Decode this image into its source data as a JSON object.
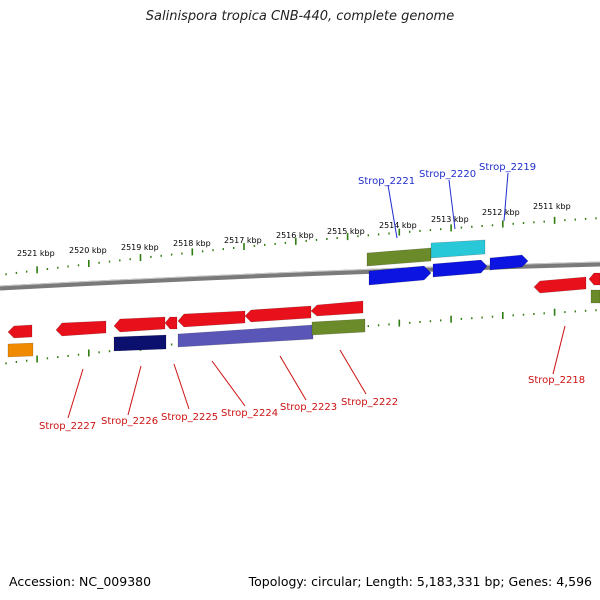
{
  "title": "Salinispora tropica CNB-440, complete genome",
  "footer": {
    "accession": "Accession: NC_009380",
    "summary": "Topology: circular; Length: 5,183,331 bp; Genes: 4,596"
  },
  "colors": {
    "backbone": "#7a7a7a",
    "tick": "#2e7d10",
    "gene_red": "#e8101a",
    "gene_blue": "#0b14e0",
    "gene_navy": "#0b0f6e",
    "gene_olive": "#6b8a2a",
    "gene_cyan": "#29c8d8",
    "gene_orange": "#f08a00",
    "gene_slate": "#5a56b8",
    "label_red": "#cc1111",
    "label_blue": "#1f2dcc"
  },
  "scale_labels": [
    "2521 kbp",
    "2520 kbp",
    "2519 kbp",
    "2518 kbp",
    "2517 kbp",
    "2516 kbp",
    "2515 kbp",
    "2514 kbp",
    "2513 kbp",
    "2512 kbp",
    "2511 kbp"
  ],
  "gene_labels_top": [
    "Strop_2221",
    "Strop_2220",
    "Strop_2219"
  ],
  "gene_labels_bottom": [
    "Strop_2227",
    "Strop_2226",
    "Strop_2225",
    "Strop_2224",
    "Strop_2223",
    "Strop_2222",
    "Strop_2218"
  ]
}
